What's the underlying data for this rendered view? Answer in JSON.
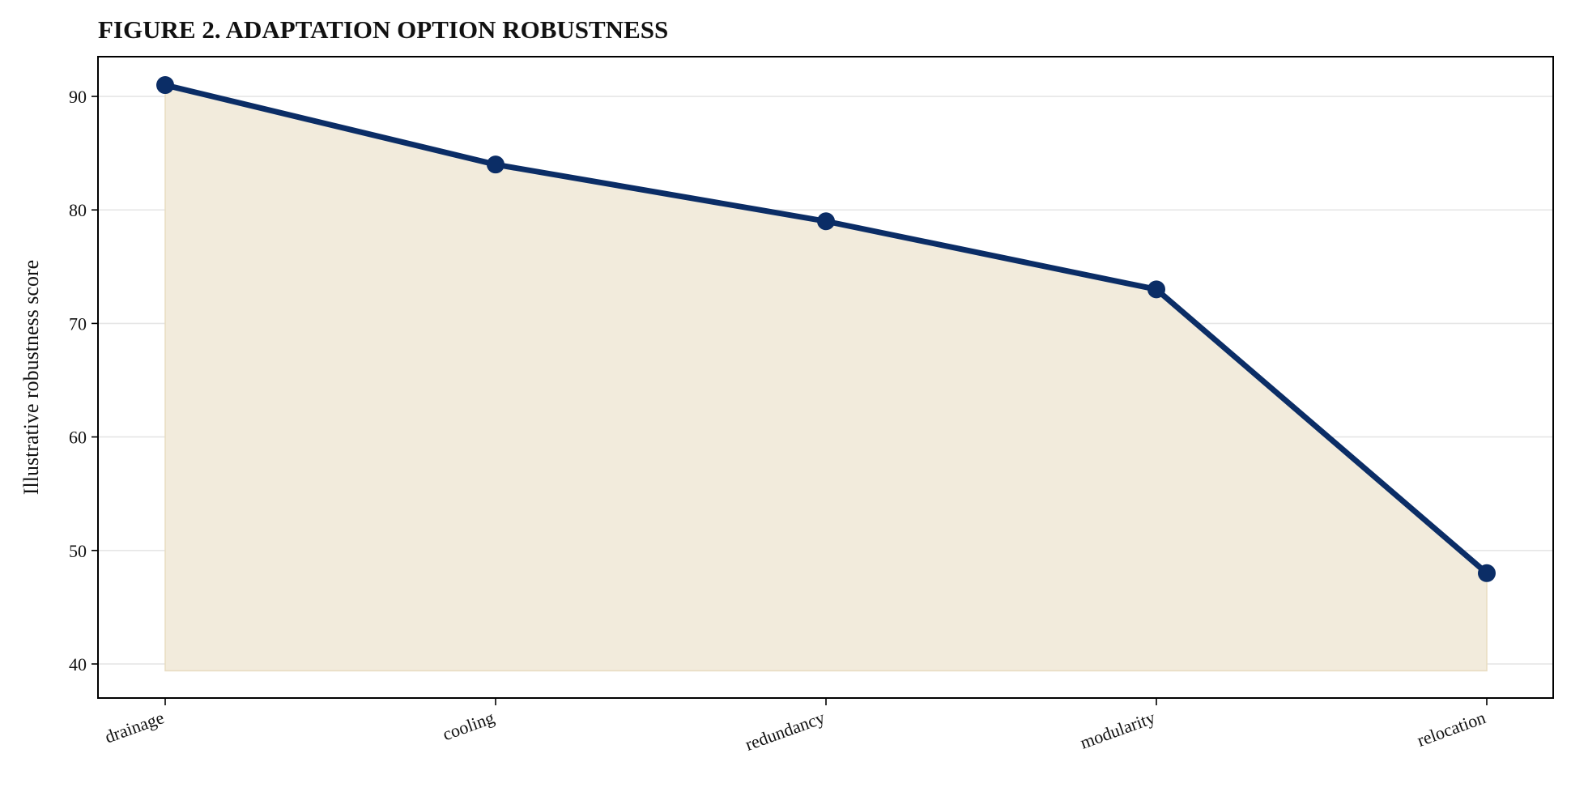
{
  "chart_data": {
    "type": "area",
    "title": "FIGURE 2. ADAPTATION OPTION ROBUSTNESS",
    "xlabel": "",
    "ylabel": "Illustrative robustness score",
    "categories": [
      "drainage",
      "cooling",
      "redundancy",
      "modularity",
      "relocation"
    ],
    "series": [
      {
        "values": [
          91,
          84,
          79,
          73,
          48
        ]
      }
    ],
    "ylim": [
      37,
      93.5
    ],
    "yticks": [
      40,
      50,
      60,
      70,
      80,
      90
    ],
    "fill_baseline": 39.4,
    "grid": "horizontal",
    "colors": {
      "line": "#0b2d66",
      "fill": "#f2ebdc",
      "fill_edge": "#e8dcc0"
    }
  }
}
